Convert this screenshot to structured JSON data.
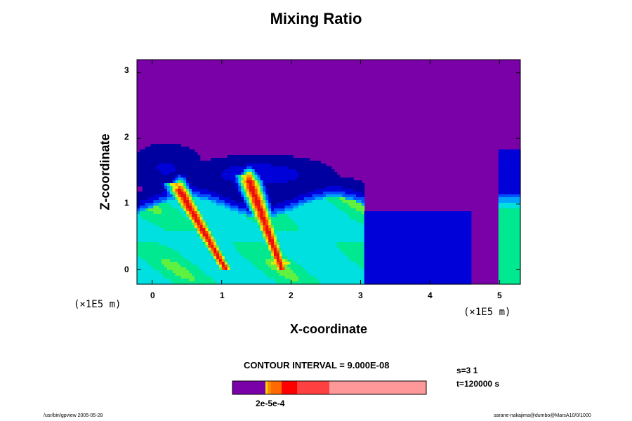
{
  "chart_data": {
    "type": "heatmap",
    "title": "Mixing Ratio",
    "xlabel": "X-coordinate",
    "ylabel": "Z-coordinate",
    "x_unit": "(×1E5 m)",
    "z_unit": "(×1E5 m)",
    "x_ticks": [
      "0",
      "1",
      "2",
      "3",
      "4",
      "5"
    ],
    "z_ticks": [
      "0",
      "1",
      "2",
      "3"
    ],
    "xlim": [
      -0.22,
      5.3
    ],
    "zlim": [
      -0.22,
      3.2
    ],
    "contour_interval_text": "CONTOUR INTERVAL = 9.000E-08",
    "colorbar_label": "2e-5e-4",
    "colorbar_colors": [
      "#7a00a8",
      "#ffd700",
      "#ff8c00",
      "#ff6a00",
      "#ff0000",
      "#ff4040",
      "#ff9999"
    ],
    "palette": [
      "#7a00a8",
      "#0000a0",
      "#0000d8",
      "#0050ff",
      "#00a0ff",
      "#00e0e0",
      "#00e890",
      "#60f040",
      "#d0f020",
      "#ffe000",
      "#ffa000",
      "#ff5000",
      "#e81010"
    ],
    "plumes": [
      {
        "x_base": 1.8,
        "z_top": 1.45
      },
      {
        "x_base": 0.95,
        "z_top": 1.3
      }
    ],
    "annotations": {
      "step": "s=3 1",
      "time": "t=120000 s"
    }
  },
  "footer": {
    "left": "/usr/bin/gpview 2005-05-28",
    "right": "sarane-nakajima@dumbo@MarsA10/0/1000"
  }
}
